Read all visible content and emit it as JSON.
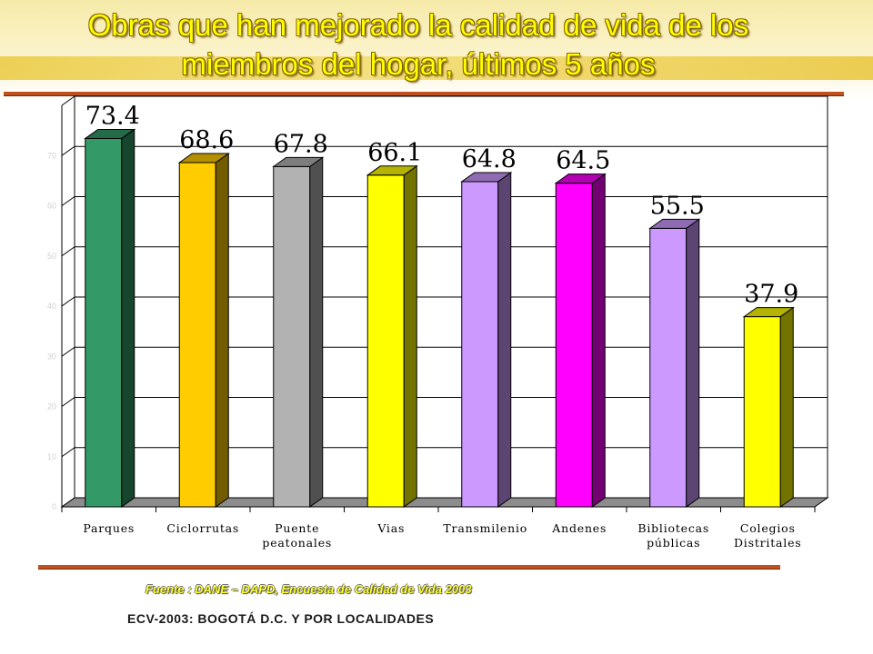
{
  "title": {
    "line1": "Obras que han mejorado la calidad de vida de los",
    "line2": "miembros del hogar, últimos 5 años"
  },
  "source_text": "Fuente : DANE – DAPD, Encuesta de Calidad de Vida 2003",
  "footer_text": "ECV-2003: BOGOTÁ D.C. Y POR LOCALIDADES",
  "chart_data": {
    "type": "bar",
    "title": "Obras que han mejorado la calidad de vida de los miembros del hogar, últimos 5 años",
    "categories": [
      [
        "Parques"
      ],
      [
        "Ciclorrutas"
      ],
      [
        "Puente",
        "peatonales"
      ],
      [
        "Vias"
      ],
      [
        "Transmilenio"
      ],
      [
        "Andenes"
      ],
      [
        "Bibliotecas",
        "públicas"
      ],
      [
        "Colegios",
        "Distritales"
      ]
    ],
    "values": [
      73.4,
      68.6,
      67.8,
      66.1,
      64.8,
      64.5,
      55.5,
      37.9
    ],
    "value_labels": [
      "73.4",
      "68.6",
      "67.8",
      "66.1",
      "64.8",
      "64.5",
      "55.5",
      "37.9"
    ],
    "y_ticks": [
      "0",
      "10",
      "20",
      "30",
      "40",
      "50",
      "60",
      "70"
    ],
    "ylim": [
      0,
      80
    ],
    "grid": true,
    "legend": "none",
    "bar_colors": [
      "#339966",
      "#ffcc00",
      "#b2b2b2",
      "#ffff00",
      "#cc99ff",
      "#ff00ff",
      "#cc99ff",
      "#ffff00"
    ]
  }
}
